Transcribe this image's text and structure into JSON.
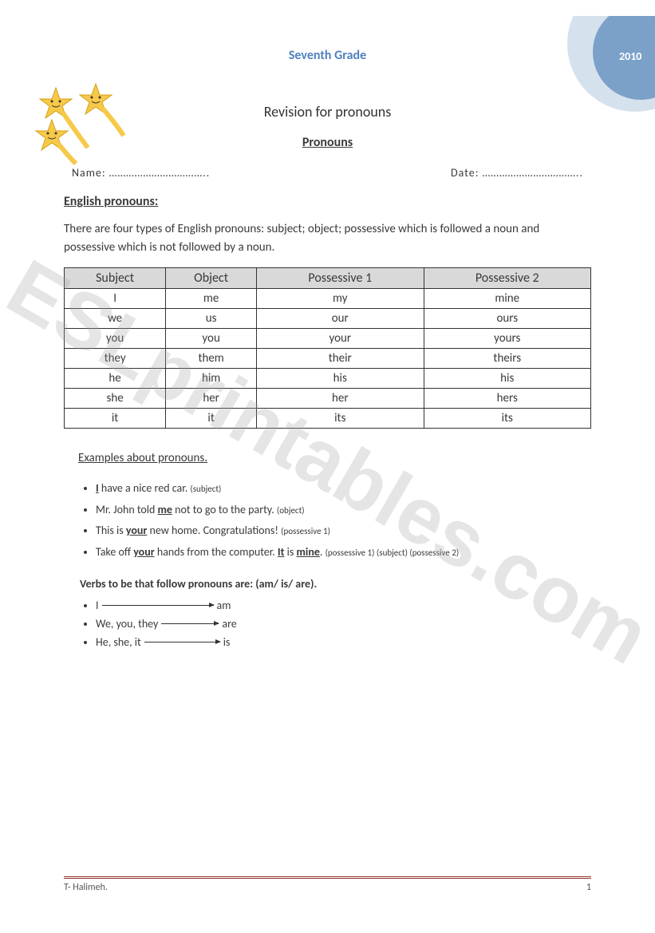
{
  "header": {
    "grade": "Seventh Grade",
    "year": "2010"
  },
  "titles": {
    "main": "Revision for pronouns",
    "sub": "Pronouns"
  },
  "fields": {
    "name_label": "Name: ……………………………..",
    "date_label": "Date: …………………………….."
  },
  "section1": {
    "heading": "English pronouns:",
    "intro": "There are four types of English pronouns: subject; object; possessive which is followed a noun and possessive which  is not followed by a noun."
  },
  "table": {
    "headers": [
      "Subject",
      "Object",
      "Possessive 1",
      "Possessive 2"
    ],
    "rows": [
      [
        "I",
        "me",
        "my",
        "mine"
      ],
      [
        "we",
        "us",
        "our",
        "ours"
      ],
      [
        "you",
        "you",
        "your",
        "yours"
      ],
      [
        "they",
        "them",
        "their",
        "theirs"
      ],
      [
        "he",
        "him",
        "his",
        "his"
      ],
      [
        "she",
        "her",
        "her",
        "hers"
      ],
      [
        "it",
        "it",
        "its",
        "its"
      ]
    ],
    "header_bg": "#d9d9d9",
    "border_color": "#333333"
  },
  "examples": {
    "heading": "Examples about pronouns.",
    "items": [
      {
        "pre": "",
        "bold_u": "I",
        "mid": " have a nice red car. ",
        "note": "(subject)"
      },
      {
        "pre": "Mr. John told ",
        "bold_u": "me",
        "mid": " not to go to the party. ",
        "note": "(object)"
      },
      {
        "pre": "This is ",
        "bold_u": "your",
        "mid": " new home. Congratulations! ",
        "note": "(possessive 1)"
      },
      {
        "pre": "Take off ",
        "bold_u": "your",
        "mid": "   hands from the computer. ",
        "bold_u2": "It",
        "mid2": "  is ",
        "bold_u3": "mine",
        "tail": ". ",
        "note": "(possessive 1)  (subject)  (possessive 2)"
      }
    ]
  },
  "verbs": {
    "heading": "Verbs to be that follow pronouns are: (am/ is/ are).",
    "items": [
      {
        "label": "I",
        "arrow_width": 140,
        "value": "am"
      },
      {
        "label": "We, you, they",
        "arrow_width": 72,
        "value": "are"
      },
      {
        "label": "He, she, it",
        "arrow_width": 95,
        "value": "is"
      }
    ]
  },
  "footer": {
    "author": "T- Halimeh.",
    "page": "1"
  },
  "watermark": "ESLprintables.com",
  "colors": {
    "badge_outer": "#d6e1ee",
    "badge_inner": "#7ba1c9",
    "star_fill": "#f7c948",
    "star_stroke": "#d4a017",
    "accent_blue": "#4f81bd",
    "footer_rule": "#943634"
  }
}
